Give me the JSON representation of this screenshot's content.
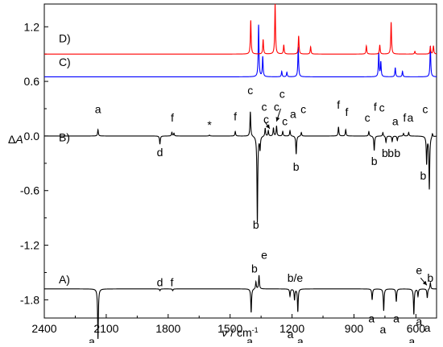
{
  "chart_data": {
    "type": "line",
    "xlabel": "ν / cm⁻¹",
    "xlabel_parts": [
      "ν",
      " / cm",
      "-1"
    ],
    "ylabel": "ΔA",
    "ylabel_parts": [
      "Δ",
      "A"
    ],
    "xlim": [
      2400,
      500
    ],
    "ylim": [
      -2.0,
      1.45
    ],
    "x_ticks": [
      2400,
      2100,
      1800,
      1500,
      1200,
      900,
      600
    ],
    "x_tick_labels": [
      "2400",
      "2100",
      "1800",
      "1500",
      "1200",
      "900",
      "600"
    ],
    "y_ticks": [
      1.2,
      0.6,
      0.0,
      -0.6,
      -1.2,
      -1.8
    ],
    "y_tick_labels": [
      "1.2",
      "0.6",
      "0.0",
      "-0.6",
      "-1.2",
      "-1.8"
    ],
    "grid": false,
    "series": [
      {
        "label": "A)",
        "color": "#000000",
        "baseline": -1.68,
        "peaks": [
          [
            2140,
            -0.55
          ],
          [
            1840,
            -0.02
          ],
          [
            1778,
            -0.02
          ],
          [
            1398,
            -0.26
          ],
          [
            1375,
            0.08
          ],
          [
            1360,
            0.15
          ],
          [
            1210,
            -0.08
          ],
          [
            1188,
            -0.12
          ],
          [
            1172,
            -0.25
          ],
          [
            812,
            -0.12
          ],
          [
            756,
            -0.24
          ],
          [
            695,
            -0.14
          ],
          [
            610,
            -0.28
          ],
          [
            590,
            -0.08
          ],
          [
            545,
            -0.1
          ],
          [
            530,
            0.07
          ]
        ]
      },
      {
        "label": "B)",
        "color": "#000000",
        "baseline": 0.0,
        "peaks": [
          [
            2140,
            0.07
          ],
          [
            1840,
            -0.09
          ],
          [
            1782,
            0.04
          ],
          [
            1772,
            0.03
          ],
          [
            1600,
            0.01
          ],
          [
            1475,
            0.05
          ],
          [
            1402,
            0.27
          ],
          [
            1368,
            -0.95
          ],
          [
            1355,
            -0.14
          ],
          [
            1330,
            0.09
          ],
          [
            1315,
            0.06
          ],
          [
            1290,
            0.09
          ],
          [
            1275,
            0.11
          ],
          [
            1245,
            0.05
          ],
          [
            1210,
            0.06
          ],
          [
            1180,
            -0.2
          ],
          [
            1155,
            0.04
          ],
          [
            975,
            0.1
          ],
          [
            940,
            0.07
          ],
          [
            828,
            0.05
          ],
          [
            802,
            -0.16
          ],
          [
            760,
            0.04
          ],
          [
            745,
            -0.07
          ],
          [
            715,
            -0.06
          ],
          [
            690,
            -0.05
          ],
          [
            660,
            0.03
          ],
          [
            635,
            0.04
          ],
          [
            548,
            -0.3
          ],
          [
            535,
            -0.58
          ],
          [
            520,
            0.04
          ]
        ]
      },
      {
        "label": "C)",
        "color": "#0000ff",
        "baseline": 0.65,
        "peaks": [
          [
            1362,
            0.57
          ],
          [
            1342,
            0.22
          ],
          [
            1250,
            0.06
          ],
          [
            1225,
            0.05
          ],
          [
            1170,
            0.33
          ],
          [
            780,
            0.26
          ],
          [
            770,
            0.16
          ],
          [
            700,
            0.1
          ],
          [
            665,
            0.06
          ],
          [
            530,
            0.34
          ]
        ]
      },
      {
        "label": "D)",
        "color": "#ff0000",
        "baseline": 0.9,
        "peaks": [
          [
            1400,
            0.37
          ],
          [
            1340,
            0.16
          ],
          [
            1282,
            0.55
          ],
          [
            1240,
            0.1
          ],
          [
            1168,
            0.2
          ],
          [
            1110,
            0.08
          ],
          [
            840,
            0.09
          ],
          [
            775,
            0.1
          ],
          [
            720,
            0.35
          ],
          [
            605,
            0.03
          ],
          [
            530,
            0.08
          ],
          [
            515,
            0.09
          ]
        ]
      }
    ],
    "annotations": [
      {
        "text": "D)",
        "x": 2330,
        "y": 1.03
      },
      {
        "text": "C)",
        "x": 2330,
        "y": 0.77
      },
      {
        "text": "B)",
        "x": 2330,
        "y": -0.06
      },
      {
        "text": "A)",
        "x": 2330,
        "y": -1.62
      },
      {
        "text": "a",
        "x": 2140,
        "y": 0.25
      },
      {
        "text": "d",
        "x": 1840,
        "y": -0.22
      },
      {
        "text": "f",
        "x": 1780,
        "y": 0.16
      },
      {
        "text": "*",
        "x": 1600,
        "y": 0.08
      },
      {
        "text": "f",
        "x": 1475,
        "y": 0.17
      },
      {
        "text": "c",
        "x": 1402,
        "y": 0.46
      },
      {
        "text": "c",
        "x": 1335,
        "y": 0.28
      },
      {
        "text": "c",
        "x": 1325,
        "y": 0.14
      },
      {
        "text": "c",
        "x": 1275,
        "y": 0.28
      },
      {
        "text": "c",
        "x": 1248,
        "y": 0.42
      },
      {
        "text": "c",
        "x": 1235,
        "y": 0.12
      },
      {
        "text": "a",
        "x": 1195,
        "y": 0.2
      },
      {
        "text": "c",
        "x": 1145,
        "y": 0.25
      },
      {
        "text": "b",
        "x": 1180,
        "y": -0.38
      },
      {
        "text": "f",
        "x": 975,
        "y": 0.3
      },
      {
        "text": "f",
        "x": 935,
        "y": 0.22
      },
      {
        "text": "c",
        "x": 835,
        "y": 0.16
      },
      {
        "text": "f",
        "x": 797,
        "y": 0.28
      },
      {
        "text": "c",
        "x": 765,
        "y": 0.27
      },
      {
        "text": "b",
        "x": 802,
        "y": -0.32
      },
      {
        "text": "a",
        "x": 700,
        "y": 0.12
      },
      {
        "text": "f",
        "x": 655,
        "y": 0.16
      },
      {
        "text": "a",
        "x": 627,
        "y": 0.16
      },
      {
        "text": "b",
        "x": 750,
        "y": -0.23
      },
      {
        "text": "b",
        "x": 722,
        "y": -0.23
      },
      {
        "text": "b",
        "x": 690,
        "y": -0.23
      },
      {
        "text": "c",
        "x": 555,
        "y": 0.25
      },
      {
        "text": "b",
        "x": 565,
        "y": -0.48
      },
      {
        "text": "b",
        "x": 1375,
        "y": -1.02
      },
      {
        "text": "b",
        "x": 1382,
        "y": -1.5
      },
      {
        "text": "e",
        "x": 1335,
        "y": -1.35
      },
      {
        "text": "b/e",
        "x": 1185,
        "y": -1.6
      },
      {
        "text": "d",
        "x": 1840,
        "y": -1.65
      },
      {
        "text": "f",
        "x": 1782,
        "y": -1.65
      },
      {
        "text": "a",
        "x": 2170,
        "y": -2.3
      },
      {
        "text": "a",
        "x": 1405,
        "y": -2.3
      },
      {
        "text": "a",
        "x": 1208,
        "y": -2.22
      },
      {
        "text": "a",
        "x": 1160,
        "y": -2.3
      },
      {
        "text": "a",
        "x": 815,
        "y": -2.05
      },
      {
        "text": "a",
        "x": 760,
        "y": -2.17
      },
      {
        "text": "a",
        "x": 695,
        "y": -2.05
      },
      {
        "text": "a",
        "x": 620,
        "y": -2.3
      },
      {
        "text": "a",
        "x": 585,
        "y": -2.08
      },
      {
        "text": "a",
        "x": 545,
        "y": -2.15
      },
      {
        "text": "e",
        "x": 585,
        "y": -1.52
      },
      {
        "text": "b",
        "x": 530,
        "y": -1.6
      }
    ],
    "arrows": [
      {
        "from": [
          1333,
          0.16
        ],
        "to": [
          1308,
          0.08
        ]
      },
      {
        "from": [
          1255,
          0.3
        ],
        "to": [
          1275,
          0.16
        ]
      },
      {
        "from": [
          577,
          -1.56
        ],
        "to": [
          547,
          -1.64
        ]
      }
    ]
  }
}
